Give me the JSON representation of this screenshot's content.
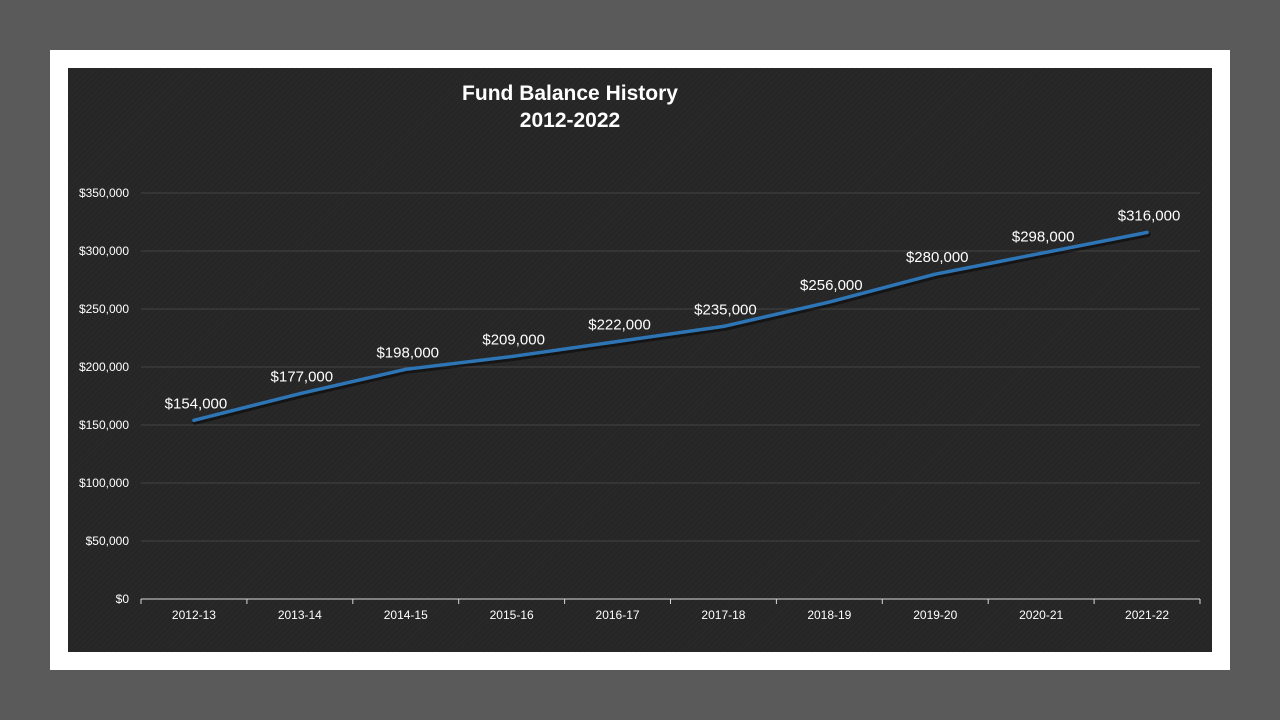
{
  "chart_data": {
    "type": "line",
    "title": "Fund Balance History",
    "subtitle": "2012-2022",
    "categories": [
      "2012-13",
      "2013-14",
      "2014-15",
      "2015-16",
      "2016-17",
      "2017-18",
      "2018-19",
      "2019-20",
      "2020-21",
      "2021-22"
    ],
    "series": [
      {
        "values": [
          154000,
          177000,
          198000,
          209000,
          222000,
          235000,
          256000,
          280000,
          298000,
          316000
        ],
        "color": "#2e75b6"
      }
    ],
    "data_labels": [
      "$154,000",
      "$177,000",
      "$198,000",
      "$209,000",
      "$222,000",
      "$235,000",
      "$256,000",
      "$280,000",
      "$298,000",
      "$316,000"
    ],
    "y_ticks": [
      0,
      50000,
      100000,
      150000,
      200000,
      250000,
      300000,
      350000
    ],
    "y_tick_labels": [
      "$0",
      "$50,000",
      "$100,000",
      "$150,000",
      "$200,000",
      "$250,000",
      "$300,000",
      "$350,000"
    ],
    "ylim": [
      0,
      350000
    ],
    "grid": true,
    "legend": "none",
    "colors": {
      "background": "#262626",
      "gridline": "#444444",
      "text": "#ffffff"
    }
  }
}
